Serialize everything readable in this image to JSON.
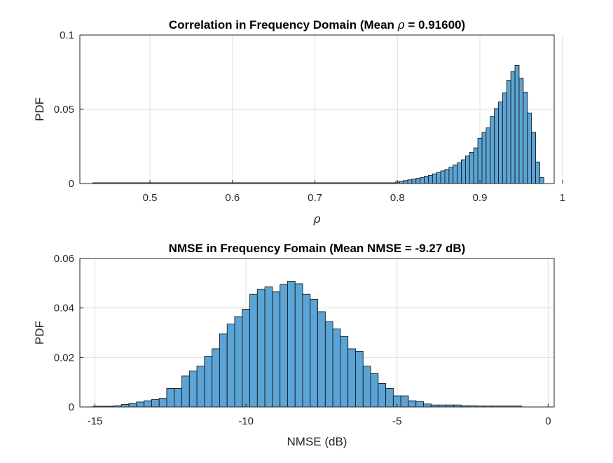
{
  "chart_data": [
    {
      "type": "bar",
      "title": "Correlation in Frequency Domain (Mean ",
      "title_symbol": "ρ",
      "title_suffix": " = 0.91600)",
      "xlabel": "ρ",
      "ylabel": "PDF",
      "xlim": [
        0.415,
        0.99
      ],
      "ylim": [
        0,
        0.1
      ],
      "xticks": [
        0.5,
        0.6,
        0.7,
        0.8,
        0.9,
        1
      ],
      "xtick_labels": [
        "0.5",
        "0.6",
        "0.7",
        "0.8",
        "0.9",
        "1"
      ],
      "yticks": [
        0,
        0.05,
        0.1
      ],
      "ytick_labels": [
        "0",
        "0.05",
        "0.1"
      ],
      "grid": true,
      "bar_color": "#5ba4d6",
      "edge_color": "#1a1a1a",
      "bin_width": 0.005,
      "x": [
        0.8,
        0.805,
        0.81,
        0.815,
        0.82,
        0.825,
        0.83,
        0.835,
        0.84,
        0.845,
        0.85,
        0.855,
        0.86,
        0.865,
        0.87,
        0.875,
        0.88,
        0.885,
        0.89,
        0.895,
        0.9,
        0.905,
        0.91,
        0.915,
        0.92,
        0.925,
        0.93,
        0.935,
        0.94,
        0.945,
        0.95,
        0.955,
        0.96,
        0.965,
        0.97,
        0.975
      ],
      "values": [
        0.001,
        0.0015,
        0.002,
        0.0025,
        0.003,
        0.0035,
        0.004,
        0.005,
        0.0055,
        0.0065,
        0.0075,
        0.0085,
        0.0095,
        0.011,
        0.0125,
        0.014,
        0.016,
        0.0185,
        0.021,
        0.024,
        0.0305,
        0.0345,
        0.0375,
        0.045,
        0.0505,
        0.055,
        0.061,
        0.0695,
        0.0755,
        0.0795,
        0.071,
        0.0615,
        0.0475,
        0.0345,
        0.0145,
        0.004
      ]
    },
    {
      "type": "bar",
      "title": "NMSE in Frequency Fomain (Mean NMSE = -9.27 dB)",
      "xlabel": "NMSE (dB)",
      "ylabel": "PDF",
      "xlim": [
        -15.5,
        0.2
      ],
      "ylim": [
        0,
        0.06
      ],
      "xticks": [
        -15,
        -10,
        -5,
        0
      ],
      "xtick_labels": [
        "-15",
        "-10",
        "-5",
        "0"
      ],
      "yticks": [
        0,
        0.02,
        0.04,
        0.06
      ],
      "ytick_labels": [
        "0",
        "0.02",
        "0.04",
        "0.06"
      ],
      "grid": true,
      "bar_color": "#5ba4d6",
      "edge_color": "#1a1a1a",
      "bin_width": 0.25,
      "x": [
        -14.5,
        -14.25,
        -14,
        -13.75,
        -13.5,
        -13.25,
        -13,
        -12.75,
        -12.5,
        -12.25,
        -12,
        -11.75,
        -11.5,
        -11.25,
        -11,
        -10.75,
        -10.5,
        -10.25,
        -10,
        -9.75,
        -9.5,
        -9.25,
        -9,
        -8.75,
        -8.5,
        -8.25,
        -8,
        -7.75,
        -7.5,
        -7.25,
        -7,
        -6.75,
        -6.5,
        -6.25,
        -6,
        -5.75,
        -5.5,
        -5.25,
        -5,
        -4.75,
        -4.5,
        -4.25,
        -4,
        -3.75,
        -3.5,
        -3.25,
        -3,
        -2.75,
        -2.5,
        -2.25,
        -2,
        -1.75,
        -1.5,
        -1.25,
        -1
      ],
      "values": [
        0.0003,
        0.0005,
        0.001,
        0.0015,
        0.002,
        0.0025,
        0.003,
        0.0035,
        0.0075,
        0.0075,
        0.0125,
        0.0145,
        0.0165,
        0.0205,
        0.0235,
        0.0295,
        0.0335,
        0.0365,
        0.0395,
        0.0455,
        0.0475,
        0.0485,
        0.0465,
        0.0495,
        0.0508,
        0.0498,
        0.0455,
        0.0435,
        0.0385,
        0.0345,
        0.0315,
        0.0285,
        0.0235,
        0.0225,
        0.0165,
        0.0135,
        0.0095,
        0.0075,
        0.0045,
        0.0045,
        0.0025,
        0.0022,
        0.0012,
        0.0008,
        0.0008,
        0.0008,
        0.0008,
        0.0005,
        0.0005,
        0.0004,
        0.0004,
        0.0004,
        0.0004,
        0.0004,
        0.0004
      ]
    }
  ]
}
